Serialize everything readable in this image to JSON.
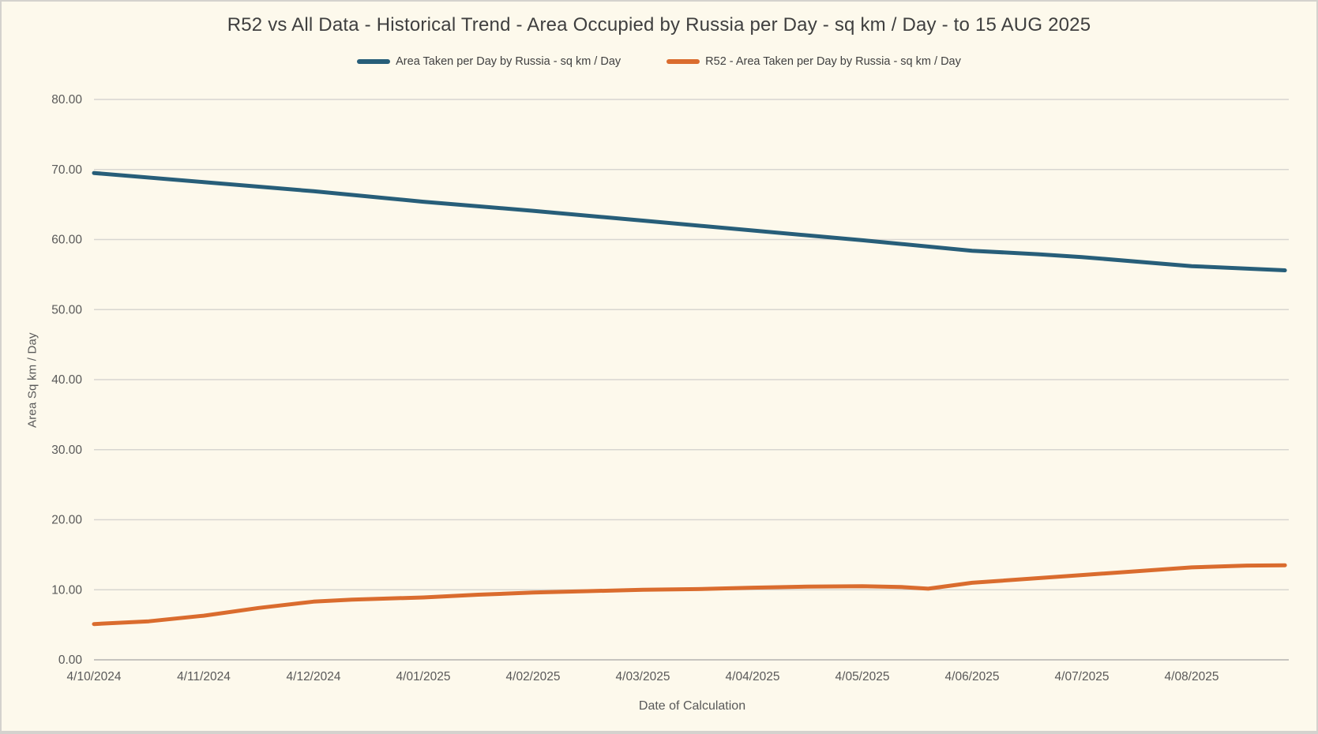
{
  "window": {
    "background_color": "#FDF9EC",
    "border_color": "#D4D2CE"
  },
  "chart_data": {
    "type": "line",
    "title": "R52 vs All Data - Historical Trend - Area Occupied by Russia per Day - sq km / Day - to 15 AUG 2025",
    "xlabel": "Date of Calculation",
    "ylabel": "Area Sq km / Day",
    "ylim": [
      0,
      80
    ],
    "ytick_step": 10,
    "ytick_labels": [
      "0.00",
      "10.00",
      "20.00",
      "30.00",
      "40.00",
      "50.00",
      "60.00",
      "70.00",
      "80.00"
    ],
    "categories": [
      "4/10/2024",
      "4/11/2024",
      "4/12/2024",
      "4/01/2025",
      "4/02/2025",
      "4/03/2025",
      "4/04/2025",
      "4/05/2025",
      "4/06/2025",
      "4/07/2025",
      "4/08/2025"
    ],
    "x_axis_note": "series extend past the last tick to 15 AUG 2025",
    "grid": true,
    "legend_position": "top",
    "colors": {
      "grid_line": "#D8D6D1",
      "axis_line": "#C6C4BF",
      "tick_text": "#595959",
      "title_text": "#3F3F3F"
    },
    "series": [
      {
        "name": "Area Taken per Day by Russia - sq km / Day",
        "color": "#275E79",
        "points": [
          [
            0,
            69.5
          ],
          [
            1,
            68.2
          ],
          [
            2,
            66.9
          ],
          [
            3,
            65.4
          ],
          [
            4,
            64.1
          ],
          [
            5,
            62.7
          ],
          [
            6,
            61.3
          ],
          [
            7,
            59.9
          ],
          [
            8,
            58.4
          ],
          [
            8.6,
            57.9
          ],
          [
            9,
            57.5
          ],
          [
            10,
            56.2
          ],
          [
            10.85,
            55.6
          ]
        ]
      },
      {
        "name": "R52 - Area Taken per Day by Russia - sq km / Day",
        "color": "#DA6C2E",
        "points": [
          [
            0,
            5.1
          ],
          [
            0.5,
            5.5
          ],
          [
            1,
            6.3
          ],
          [
            1.5,
            7.4
          ],
          [
            2,
            8.3
          ],
          [
            2.35,
            8.6
          ],
          [
            3,
            8.9
          ],
          [
            3.5,
            9.3
          ],
          [
            4,
            9.6
          ],
          [
            4.5,
            9.8
          ],
          [
            5,
            10.0
          ],
          [
            5.5,
            10.1
          ],
          [
            6,
            10.3
          ],
          [
            6.5,
            10.45
          ],
          [
            7,
            10.5
          ],
          [
            7.35,
            10.4
          ],
          [
            7.6,
            10.15
          ],
          [
            8,
            11.0
          ],
          [
            9,
            12.1
          ],
          [
            10,
            13.2
          ],
          [
            10.5,
            13.45
          ],
          [
            10.85,
            13.5
          ]
        ]
      }
    ]
  }
}
